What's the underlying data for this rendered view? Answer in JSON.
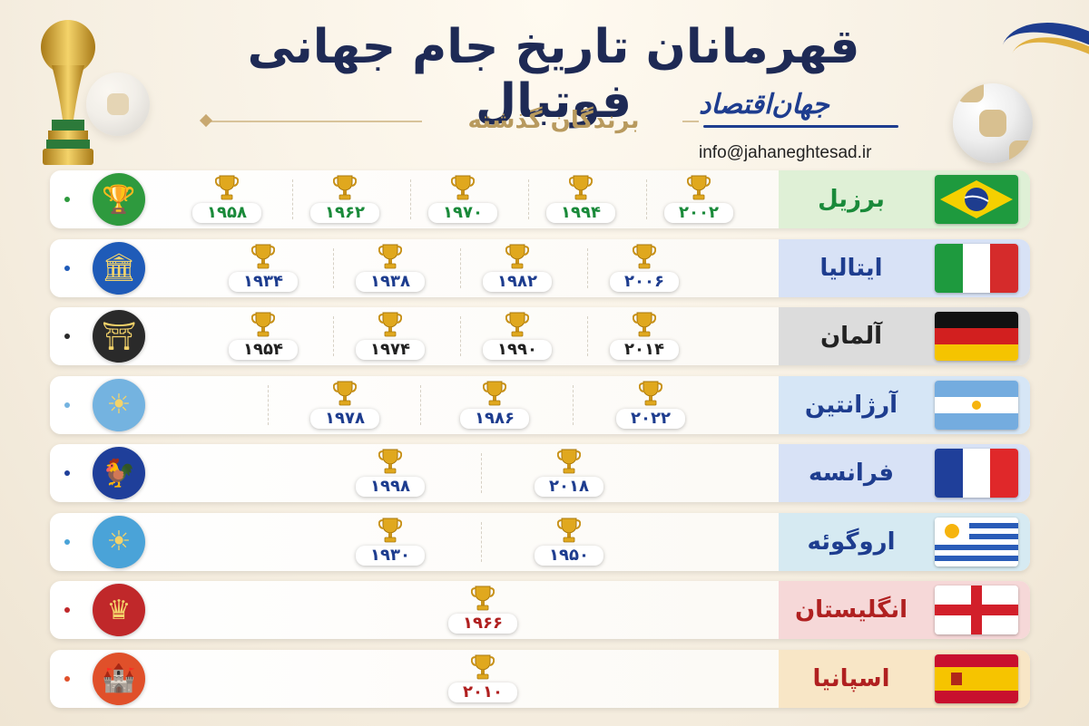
{
  "title": "قهرمانان تاریخ جام جهانی فوتبال",
  "subtitle": "برندگان گذشته",
  "logo_text": "جهان‌اقتصاد",
  "email": "info@jahaneghtesad.ir",
  "rows": [
    {
      "country": "برزیل",
      "color": "#1a8a3a",
      "bg": "#dff0d6",
      "flag": "brazil-flag",
      "emblem_icon": "laurel-trophy-icon",
      "emblem_color": "#2e9a3e",
      "years": [
        "۱۹۵۸",
        "۱۹۶۲",
        "۱۹۷۰",
        "۱۹۹۴",
        "۲۰۰۲"
      ]
    },
    {
      "country": "ایتالیا",
      "color": "#1e3d8f",
      "bg": "#d8e2f6",
      "flag": "italy-flag",
      "emblem_icon": "colosseum-icon",
      "emblem_color": "#1f5bb8",
      "years": [
        "۱۹۳۴",
        "۱۹۳۸",
        "۱۹۸۲",
        "۲۰۰۶"
      ]
    },
    {
      "country": "آلمان",
      "color": "#222222",
      "bg": "#dcdcdc",
      "flag": "germany-flag",
      "emblem_icon": "brandenburg-gate-icon",
      "emblem_color": "#2a2a2a",
      "years": [
        "۱۹۵۴",
        "۱۹۷۴",
        "۱۹۹۰",
        "۲۰۱۴"
      ]
    },
    {
      "country": "آرژانتین",
      "color": "#1e3d8f",
      "bg": "#d6e6f6",
      "flag": "argentina-flag",
      "emblem_icon": "sun-of-may-icon",
      "emblem_color": "#74b3e0",
      "years": [
        "۱۹۷۸",
        "۱۹۸۶",
        "۲۰۲۲"
      ]
    },
    {
      "country": "فرانسه",
      "color": "#1e3d8f",
      "bg": "#d8e2f6",
      "flag": "france-flag",
      "emblem_icon": "rooster-icon",
      "emblem_color": "#1f3f9a",
      "years": [
        "۱۹۹۸",
        "۲۰۱۸"
      ]
    },
    {
      "country": "اروگوئه",
      "color": "#1e3d8f",
      "bg": "#d6eaf2",
      "flag": "uruguay-flag",
      "emblem_icon": "sun-icon",
      "emblem_color": "#4aa3d8",
      "years": [
        "۱۹۳۰",
        "۱۹۵۰"
      ]
    },
    {
      "country": "انگلیستان",
      "color": "#b02020",
      "bg": "#f6d8d8",
      "flag": "england-flag",
      "emblem_icon": "crown-icon",
      "emblem_color": "#c0282a",
      "years": [
        "۱۹۶۶"
      ]
    },
    {
      "country": "اسپانیا",
      "color": "#b02020",
      "bg": "#f8e6c6",
      "flag": "spain-flag",
      "emblem_icon": "castle-icon",
      "emblem_color": "#e0502a",
      "years": [
        "۲۰۱۰"
      ]
    }
  ]
}
